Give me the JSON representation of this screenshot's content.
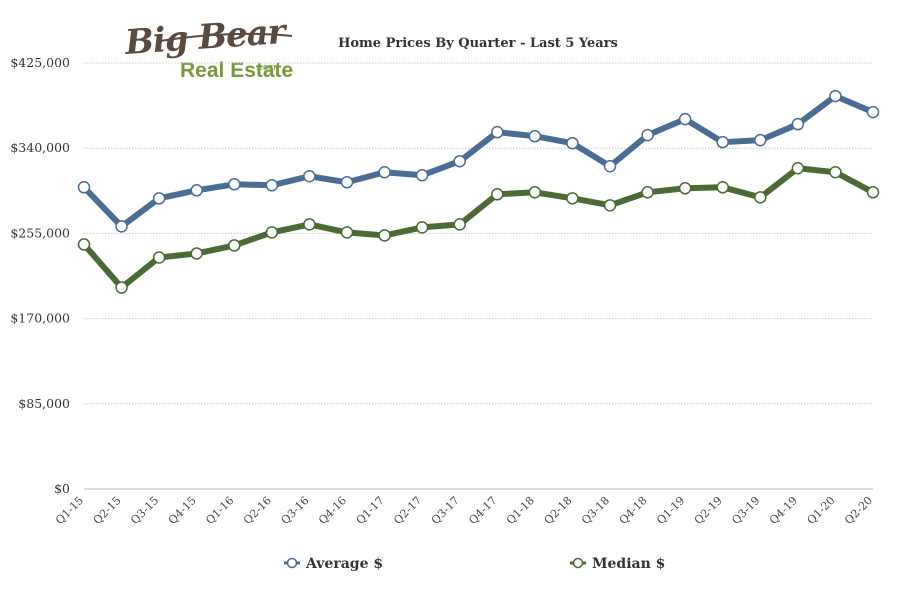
{
  "logo": {
    "name": "Big Bear",
    "sub": "Real Estate",
    "suffix": ".com"
  },
  "chart_data": {
    "type": "line",
    "title": "Home Prices By Quarter - Last 5 Years",
    "categories": [
      "Q1-15",
      "Q2-15",
      "Q3-15",
      "Q4-15",
      "Q1-16",
      "Q2-16",
      "Q3-16",
      "Q4-16",
      "Q1-17",
      "Q2-17",
      "Q3-17",
      "Q4-17",
      "Q1-18",
      "Q2-18",
      "Q3-18",
      "Q4-18",
      "Q1-19",
      "Q2-19",
      "Q3-19",
      "Q4-19",
      "Q1-20",
      "Q2-20"
    ],
    "ylim": [
      0,
      425000
    ],
    "yticks": [
      0,
      85000,
      170000,
      255000,
      340000,
      425000
    ],
    "ytick_labels": [
      "$0",
      "$85,000",
      "$170,000",
      "$255,000",
      "$340,000",
      "$425,000"
    ],
    "grid": true,
    "legend_position": "bottom",
    "series": [
      {
        "name": "Average $",
        "color": "#4a6d96",
        "values": [
          301000,
          262000,
          290000,
          298000,
          304000,
          303000,
          312000,
          306000,
          316000,
          313000,
          327000,
          356000,
          352000,
          345000,
          322000,
          353000,
          369000,
          346000,
          348000,
          364000,
          392000,
          376000
        ]
      },
      {
        "name": "Median $",
        "color": "#4b6b35",
        "values": [
          244000,
          201000,
          231000,
          235000,
          243000,
          256000,
          264000,
          256000,
          253000,
          261000,
          264000,
          294000,
          296000,
          290000,
          283000,
          296000,
          300000,
          301000,
          291000,
          320000,
          316000,
          296000
        ]
      }
    ]
  }
}
